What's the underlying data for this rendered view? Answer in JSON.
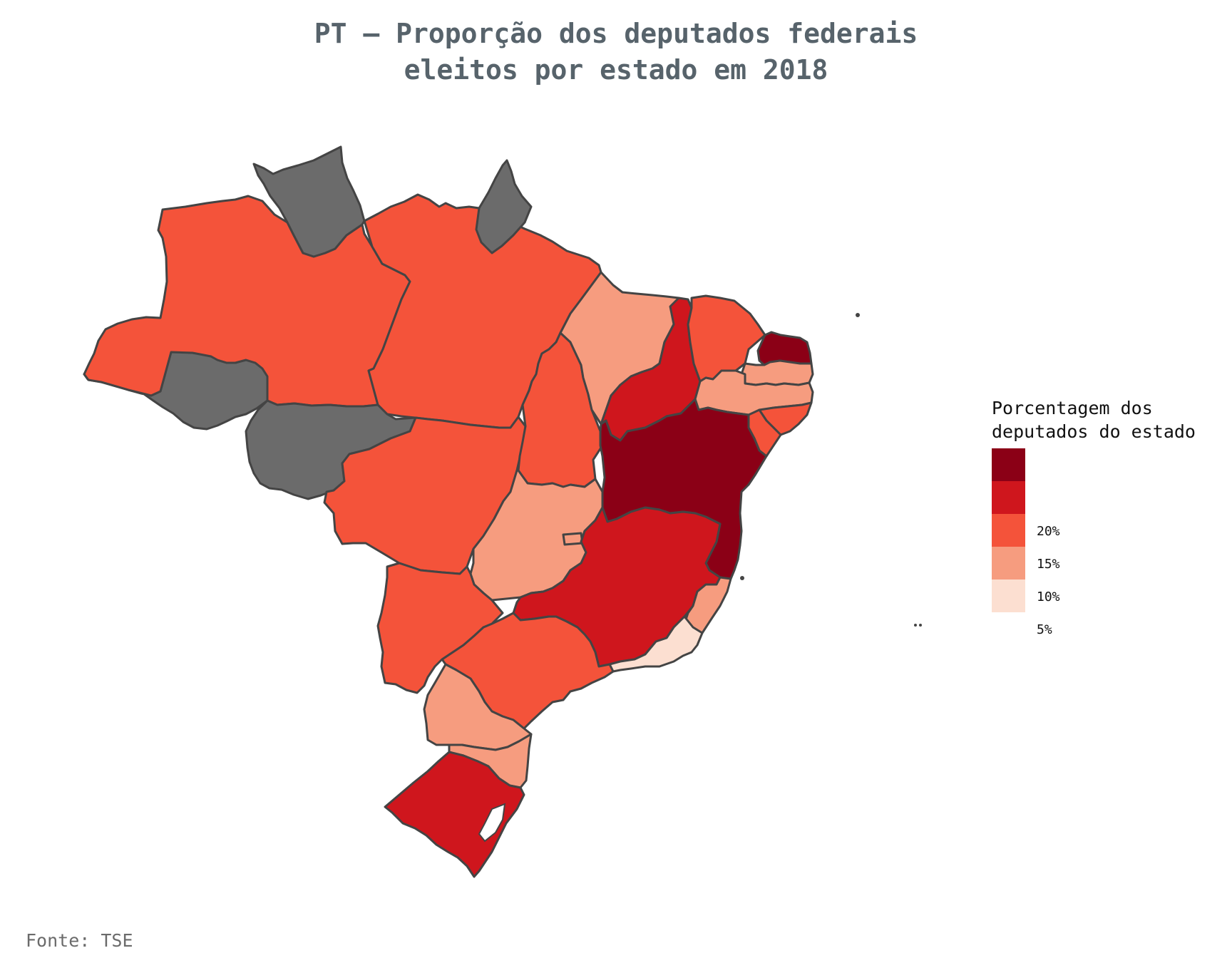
{
  "title": {
    "line1": "PT – Proporção dos deputados federais",
    "line2": "eleitos por estado em 2018"
  },
  "source": "Fonte: TSE",
  "legend": {
    "title": "Porcentagem dos\ndeputados do estado",
    "bins": [
      {
        "color": "#8b0016"
      },
      {
        "color": "#cf161d"
      },
      {
        "color": "#f4533a"
      },
      {
        "color": "#f69c7f"
      },
      {
        "color": "#fcdfd1"
      }
    ],
    "tick_labels": [
      "20%",
      "15%",
      "10%",
      "5%"
    ]
  },
  "colors": {
    "no_data": "#6b6b6b",
    "border": "#444444",
    "title_text": "#57636b"
  },
  "chart_data": {
    "type": "choropleth",
    "scale_breaks_percent": [
      5,
      10,
      15,
      20
    ],
    "legend_placement": "right",
    "states": [
      {
        "name": "AC",
        "bin": "no_data"
      },
      {
        "name": "AM",
        "bin": "10-15%"
      },
      {
        "name": "RR",
        "bin": "no_data"
      },
      {
        "name": "PA",
        "bin": "10-15%"
      },
      {
        "name": "AP",
        "bin": "no_data"
      },
      {
        "name": "RO",
        "bin": "no_data"
      },
      {
        "name": "MT",
        "bin": "10-15%"
      },
      {
        "name": "TO",
        "bin": "10-15%"
      },
      {
        "name": "MA",
        "bin": "5-10%"
      },
      {
        "name": "PI",
        "bin": "15-20%"
      },
      {
        "name": "CE",
        "bin": "10-15%"
      },
      {
        "name": "RN",
        "bin": ">20%"
      },
      {
        "name": "PB",
        "bin": "5-10%"
      },
      {
        "name": "PE",
        "bin": "5-10%"
      },
      {
        "name": "AL",
        "bin": "10-15%"
      },
      {
        "name": "SE",
        "bin": "10-15%"
      },
      {
        "name": "BA",
        "bin": ">20%"
      },
      {
        "name": "GO",
        "bin": "5-10%"
      },
      {
        "name": "DF",
        "bin": "5-10%"
      },
      {
        "name": "MG",
        "bin": "15-20%"
      },
      {
        "name": "ES",
        "bin": "5-10%"
      },
      {
        "name": "RJ",
        "bin": "<5%"
      },
      {
        "name": "SP",
        "bin": "10-15%"
      },
      {
        "name": "MS",
        "bin": "10-15%"
      },
      {
        "name": "PR",
        "bin": "5-10%"
      },
      {
        "name": "SC",
        "bin": "5-10%"
      },
      {
        "name": "RS",
        "bin": "15-20%"
      }
    ]
  }
}
